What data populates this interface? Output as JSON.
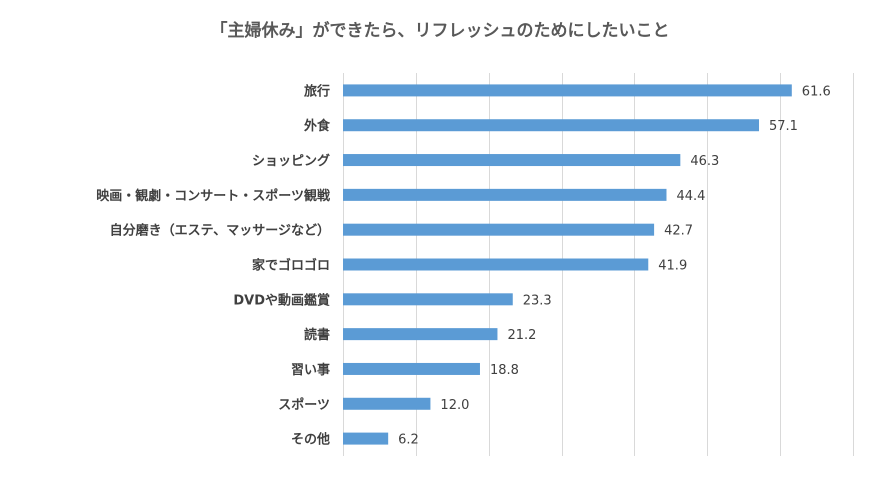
{
  "chart_data": {
    "type": "bar",
    "orientation": "horizontal",
    "title": "「主婦休み」ができたら、リフレッシュのためにしたいこと",
    "xlabel": "",
    "ylabel": "",
    "xlim": [
      0,
      70
    ],
    "grid": true,
    "legend": "none",
    "bar_color": "#5b9bd5",
    "categories": [
      "旅行",
      "外食",
      "ショッピング",
      "映画・観劇・コンサート・スポーツ観戦",
      "自分磨き（エステ、マッサージなど）",
      "家でゴロゴロ",
      "DVDや動画鑑賞",
      "読書",
      "習い事",
      "スポーツ",
      "その他"
    ],
    "values": [
      61.6,
      57.1,
      46.3,
      44.4,
      42.7,
      41.9,
      23.3,
      21.2,
      18.8,
      12.0,
      6.2
    ],
    "value_labels": [
      "61.6",
      "57.1",
      "46.3",
      "44.4",
      "42.7",
      "41.9",
      "23.3",
      "21.2",
      "18.8",
      "12.0",
      "6.2"
    ]
  }
}
